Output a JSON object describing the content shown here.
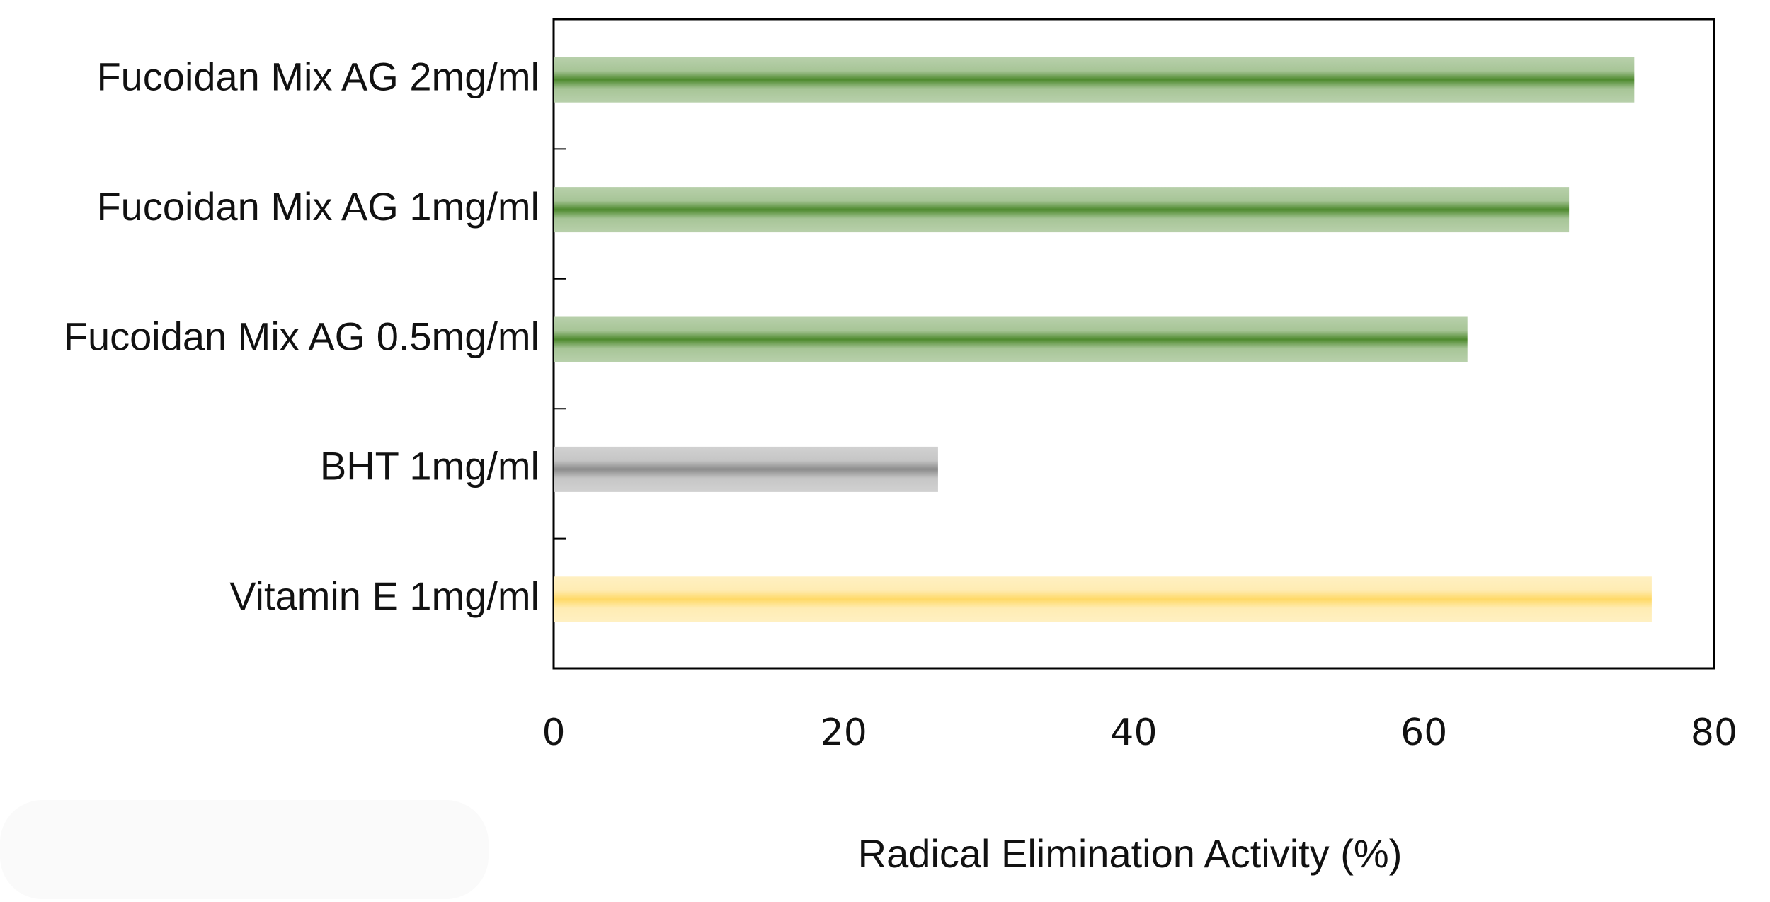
{
  "chart_data": {
    "type": "barh",
    "categories": [
      "Fucoidan Mix AG 2mg/ml",
      "Fucoidan Mix AG 1mg/ml",
      "Fucoidan Mix AG 0.5mg/ml",
      "BHT 1mg/ml",
      "Vitamin E 1mg/ml"
    ],
    "values": [
      74.5,
      70,
      63,
      26.5,
      75.7
    ],
    "colors": [
      "#4e8a2e",
      "#4e8a2e",
      "#4e8a2e",
      "#8c8c8c",
      "#ffd966"
    ],
    "xlabel": "Radical Elimination Activity (%)",
    "xlim": [
      0,
      80
    ],
    "xticks": [
      0,
      20,
      40,
      60,
      80
    ],
    "grid": false
  }
}
